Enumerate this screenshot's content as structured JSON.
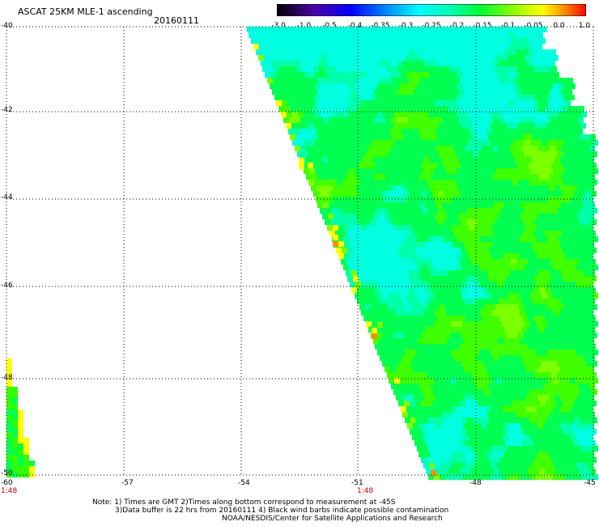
{
  "header": {
    "title": "ASCAT 25KM MLE-1 ascending",
    "date": "20160111"
  },
  "colorbar": {
    "labels": [
      "-3.0",
      "-1.0",
      "-0.5",
      "-0.4",
      "-0.35",
      "-0.3",
      "-0.25",
      "-0.2",
      "-0.15",
      "-0.1",
      "-0.05",
      "0.0",
      "1.0"
    ],
    "colors": [
      "#000000",
      "#3a004a",
      "#4b00a8",
      "#0000ff",
      "#0070ff",
      "#00c8ff",
      "#00ffe0",
      "#00ff70",
      "#30ff00",
      "#a0ff00",
      "#ffff00",
      "#ff8c00",
      "#ff0000"
    ]
  },
  "map": {
    "lat_labels": [
      "-40",
      "-42",
      "-44",
      "-46",
      "-48",
      "-50"
    ],
    "lon_labels": [
      "-60",
      "-57",
      "-54",
      "-51",
      "-48",
      "-45"
    ],
    "time_labels": [
      "1:48",
      "1:48"
    ],
    "swath_colors": {
      "cyan": "#00ffe0",
      "green": "#00ff50",
      "lime": "#7cff00",
      "yellow": "#ffff00",
      "orange": "#ff8c00"
    }
  },
  "notes": {
    "line1": "Note: 1) Times are GMT 2)Times along bottom correspond to measurement at -45S",
    "line2": "3)Data buffer is 22 hrs from 20160111 4) Black wind barbs indicate possible contamination",
    "line3": "NOAA/NESDIS/Center for Satellite Applications and Research"
  }
}
